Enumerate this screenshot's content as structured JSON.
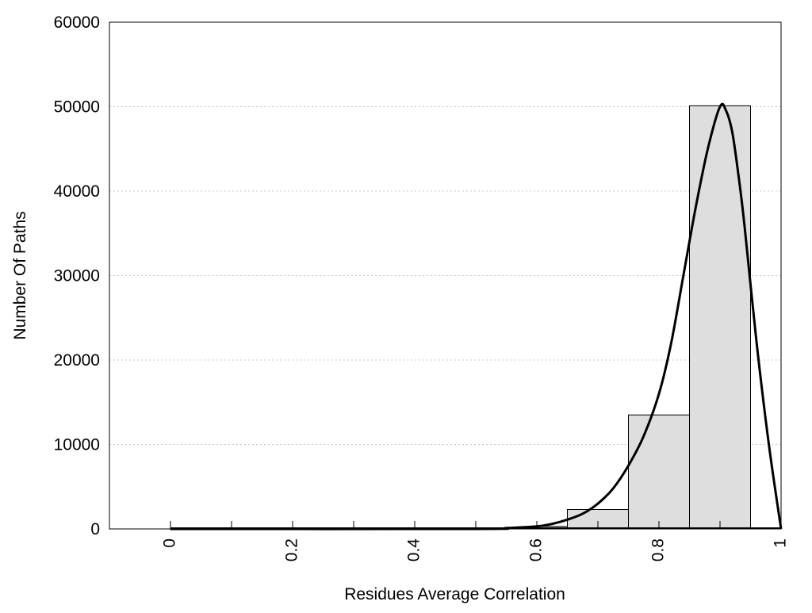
{
  "chart_data": {
    "type": "bar",
    "title": "",
    "xlabel": "Residues Average Correlation",
    "ylabel": "Number Of Paths",
    "xlim": [
      -0.1,
      1.0
    ],
    "ylim": [
      0,
      60000
    ],
    "grid": "horizontal dotted",
    "x_ticks": [
      "0",
      "0.2",
      "0.4",
      "0.6",
      "0.8",
      "1"
    ],
    "x_tick_values": [
      0,
      0.2,
      0.4,
      0.6,
      0.8,
      1.0
    ],
    "y_ticks": [
      "0",
      "10000",
      "20000",
      "30000",
      "40000",
      "50000",
      "60000"
    ],
    "y_tick_values": [
      0,
      10000,
      20000,
      30000,
      40000,
      50000,
      60000
    ],
    "bar_color": "#dedede",
    "bar_edge_color": "#000000",
    "curve_color": "#000000",
    "series": [
      {
        "type": "bar",
        "bins": [
          [
            0.0,
            0.1
          ],
          [
            0.1,
            0.2
          ],
          [
            0.2,
            0.3
          ],
          [
            0.3,
            0.4
          ],
          [
            0.4,
            0.5
          ],
          [
            0.5,
            0.55
          ],
          [
            0.55,
            0.6
          ],
          [
            0.6,
            0.65
          ],
          [
            0.65,
            0.75
          ],
          [
            0.75,
            0.85
          ],
          [
            0.85,
            0.95
          ]
        ],
        "values": [
          0,
          0,
          0,
          0,
          0,
          20,
          150,
          300,
          2300,
          13500,
          50100
        ]
      },
      {
        "type": "line",
        "x": [
          0.0,
          0.5,
          0.55,
          0.6,
          0.625,
          0.65,
          0.675,
          0.7,
          0.725,
          0.75,
          0.775,
          0.8,
          0.82,
          0.84,
          0.86,
          0.88,
          0.9,
          0.91,
          0.92,
          0.93,
          0.94,
          0.96,
          0.98,
          1.0
        ],
        "y": [
          0,
          0,
          100,
          300,
          600,
          1100,
          1800,
          3000,
          4800,
          7500,
          11000,
          16000,
          22000,
          30000,
          38000,
          45000,
          50000,
          49500,
          47000,
          42000,
          36000,
          22000,
          10000,
          0
        ]
      }
    ]
  }
}
